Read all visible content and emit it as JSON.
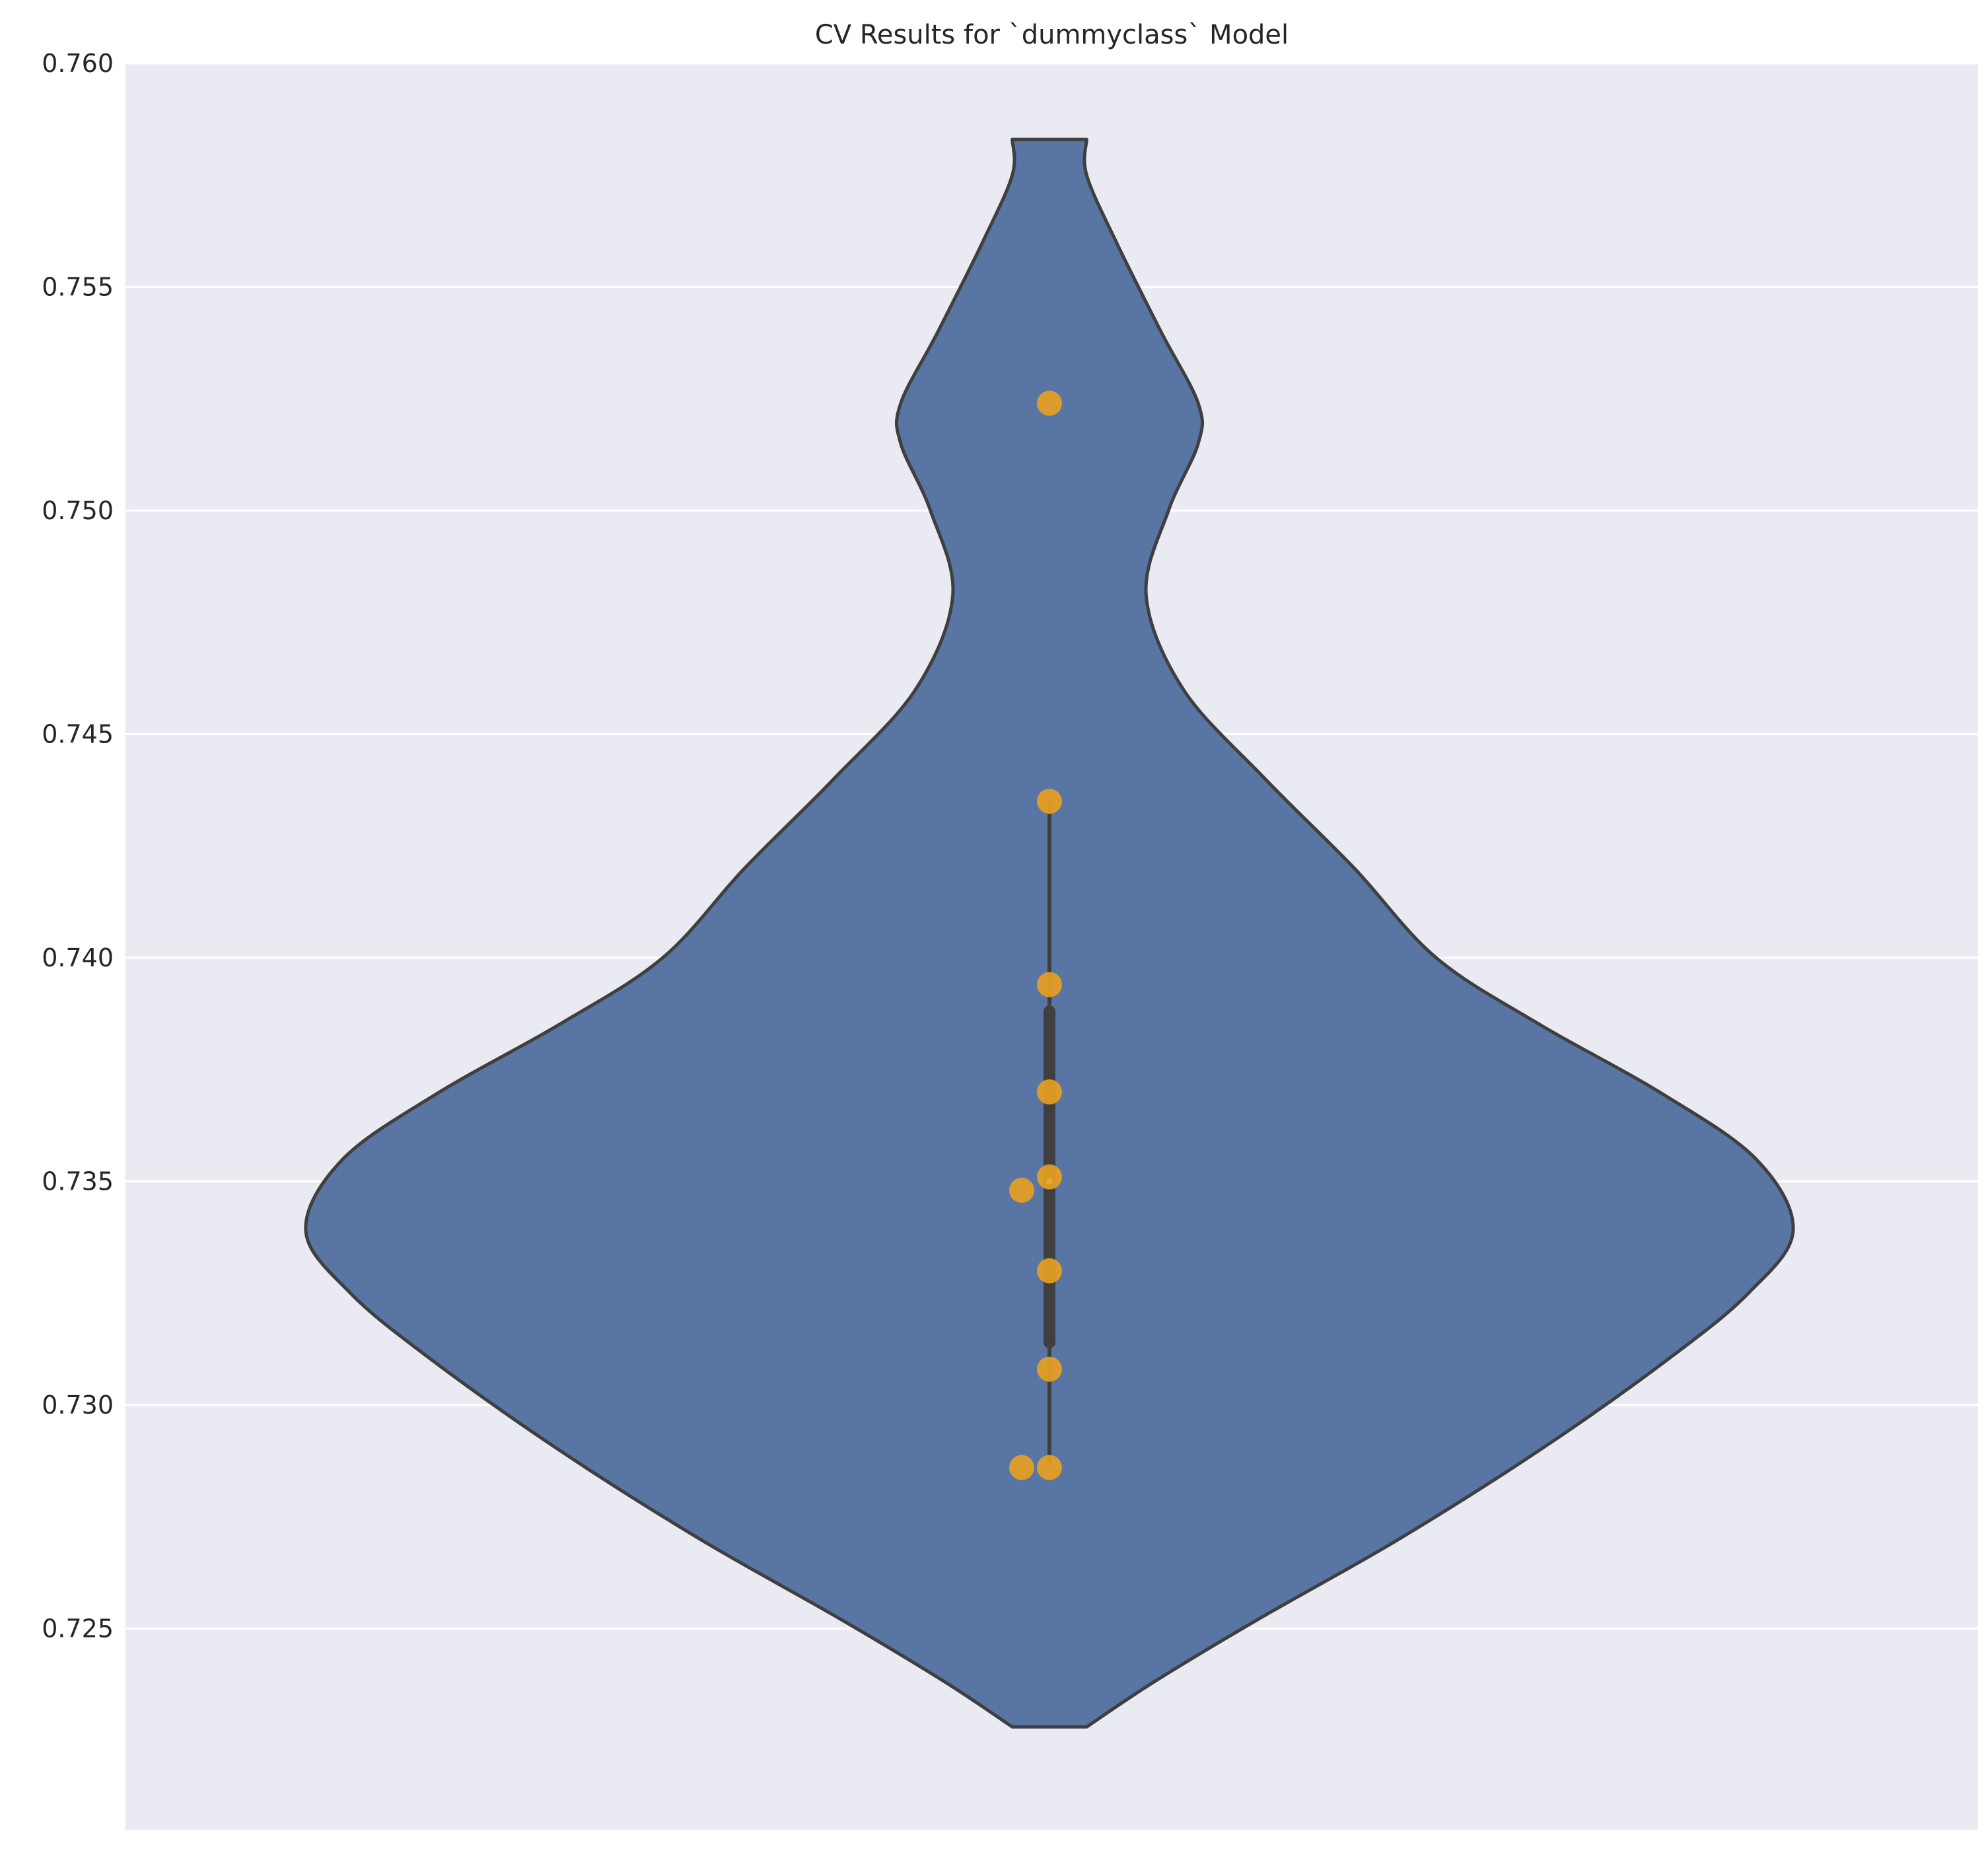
{
  "chart_data": {
    "type": "violin",
    "title": "CV Results for `dummyclass` Model",
    "xlabel": "",
    "ylabel": "",
    "ylim": [
      0.7205,
      0.76
    ],
    "yticks": [
      0.725,
      0.73,
      0.735,
      0.74,
      0.745,
      0.75,
      0.755,
      0.76
    ],
    "ytick_labels": [
      "0.725",
      "0.730",
      "0.735",
      "0.740",
      "0.745",
      "0.750",
      "0.755",
      "0.760"
    ],
    "grid": true,
    "violin": {
      "min": 0.7228,
      "max": 0.7583,
      "median": 0.735,
      "q1": 0.7314,
      "q3": 0.7388,
      "whisker_low": 0.7287,
      "whisker_high": 0.7435,
      "density_profile": [
        [
          0.7228,
          0.05
        ],
        [
          0.7238,
          0.14
        ],
        [
          0.7252,
          0.28
        ],
        [
          0.727,
          0.47
        ],
        [
          0.729,
          0.66
        ],
        [
          0.731,
          0.83
        ],
        [
          0.7325,
          0.94
        ],
        [
          0.7339,
          1.0
        ],
        [
          0.7355,
          0.95
        ],
        [
          0.737,
          0.82
        ],
        [
          0.7385,
          0.66
        ],
        [
          0.74,
          0.52
        ],
        [
          0.742,
          0.41
        ],
        [
          0.744,
          0.29
        ],
        [
          0.746,
          0.18
        ],
        [
          0.7481,
          0.13
        ],
        [
          0.75,
          0.16
        ],
        [
          0.7515,
          0.2
        ],
        [
          0.7524,
          0.2
        ],
        [
          0.754,
          0.15
        ],
        [
          0.756,
          0.09
        ],
        [
          0.7575,
          0.05
        ],
        [
          0.7583,
          0.05
        ]
      ]
    },
    "points": [
      0.7524,
      0.7435,
      0.7394,
      0.737,
      0.7351,
      0.7348,
      0.733,
      0.7308,
      0.7286,
      0.7286
    ],
    "colors": {
      "background": "#eaeaf2",
      "grid": "#ffffff",
      "violin_fill": "#5975a4",
      "violin_edge": "#3f3f3f",
      "box": "#3f3f3f",
      "points": "#e69f22"
    }
  }
}
